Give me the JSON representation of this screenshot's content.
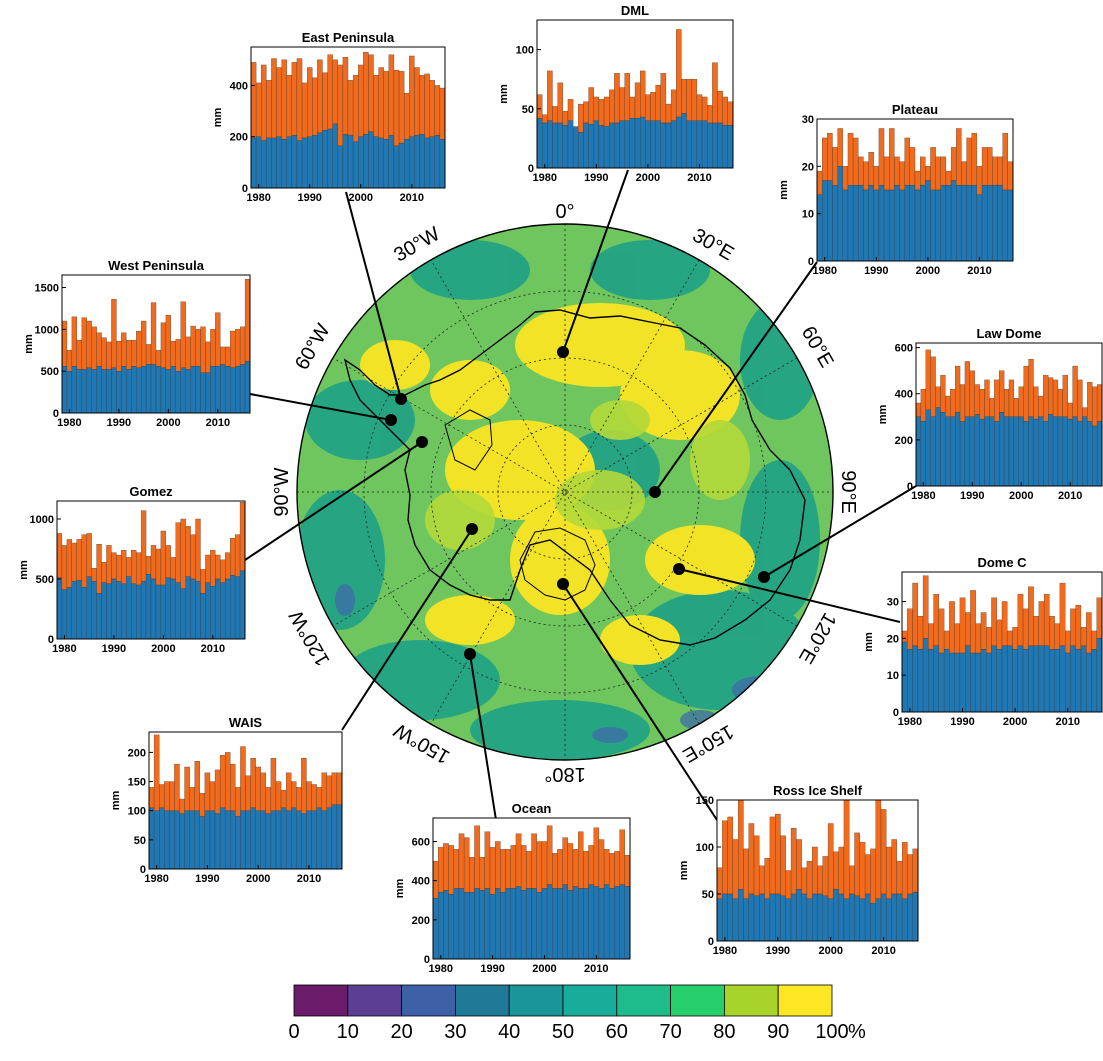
{
  "map": {
    "lon_labels": [
      "0°",
      "30°E",
      "60°E",
      "90°E",
      "120°E",
      "150°E",
      "180°",
      "150°W",
      "120°W",
      "90°W",
      "60°W",
      "30°W"
    ],
    "colors": {
      "low": "#46327e",
      "mid": "#1fa187",
      "high": "#a0da39",
      "top": "#fde725",
      "land_line": "#000000"
    }
  },
  "colorbar": {
    "ticks": [
      "0",
      "10",
      "20",
      "30",
      "40",
      "50",
      "60",
      "70",
      "80",
      "90",
      "100"
    ],
    "unit": "%",
    "colors": [
      "#6a1b6a",
      "#5b3f93",
      "#3d60a6",
      "#1f7a98",
      "#1a9598",
      "#17ad9a",
      "#1fbc8b",
      "#27cf6c",
      "#a8d32a",
      "#fde725"
    ]
  },
  "series_colors": {
    "lower": "#1f77b4",
    "upper": "#f26a1b"
  },
  "chart_data": [
    {
      "type": "bar",
      "title": "East Peninsula",
      "ylabel": "mm",
      "ylim": [
        0,
        550
      ],
      "yticks": [
        0,
        200,
        400
      ],
      "xticks": [
        "1980",
        "1990",
        "2000",
        "2010"
      ],
      "years": [
        1979,
        2016
      ],
      "series": [
        {
          "values": [
            195,
            200,
            185,
            195,
            195,
            200,
            190,
            200,
            205,
            185,
            195,
            200,
            205,
            215,
            225,
            230,
            250,
            165,
            210,
            205,
            180,
            200,
            210,
            220,
            200,
            195,
            190,
            205,
            165,
            175,
            190,
            200,
            205,
            210,
            195,
            200,
            205,
            190
          ]
        },
        {
          "values": [
            490,
            410,
            480,
            420,
            505,
            470,
            500,
            440,
            490,
            505,
            410,
            470,
            430,
            500,
            450,
            520,
            500,
            480,
            510,
            420,
            440,
            480,
            530,
            520,
            440,
            470,
            455,
            520,
            460,
            455,
            370,
            515,
            470,
            440,
            445,
            420,
            400,
            390
          ]
        }
      ]
    },
    {
      "type": "bar",
      "title": "DML",
      "ylabel": "mm",
      "ylim": [
        0,
        125
      ],
      "yticks": [
        0,
        50,
        100
      ],
      "xticks": [
        "1980",
        "1990",
        "2000",
        "2010"
      ],
      "years": [
        1979,
        2016
      ],
      "series": [
        {
          "values": [
            42,
            38,
            40,
            38,
            38,
            36,
            40,
            35,
            30,
            38,
            37,
            40,
            36,
            35,
            38,
            38,
            40,
            40,
            42,
            42,
            43,
            40,
            40,
            40,
            38,
            38,
            40,
            43,
            46,
            40,
            40,
            40,
            40,
            38,
            38,
            38,
            36,
            36
          ]
        },
        {
          "values": [
            62,
            45,
            82,
            52,
            72,
            48,
            58,
            30,
            54,
            56,
            68,
            60,
            58,
            60,
            66,
            80,
            68,
            80,
            60,
            72,
            82,
            62,
            64,
            70,
            80,
            54,
            66,
            117,
            75,
            75,
            75,
            62,
            60,
            53,
            89,
            65,
            60,
            56
          ]
        }
      ]
    },
    {
      "type": "bar",
      "title": "Plateau",
      "ylabel": "mm",
      "ylim": [
        0,
        30
      ],
      "yticks": [
        0,
        10,
        20,
        30
      ],
      "xticks": [
        "1980",
        "1990",
        "2000",
        "2010"
      ],
      "years": [
        1979,
        2016
      ],
      "series": [
        {
          "values": [
            14,
            17,
            17,
            16,
            20,
            15,
            16,
            16,
            16,
            15,
            16,
            15,
            16,
            15,
            15,
            16,
            15,
            16,
            16,
            15,
            16,
            17,
            15,
            15,
            16,
            16,
            17,
            16,
            16,
            16,
            16,
            14,
            16,
            16,
            16,
            16,
            15,
            15
          ]
        },
        {
          "values": [
            19,
            26,
            27,
            24,
            28,
            20,
            27,
            26,
            22,
            21,
            23,
            20,
            28,
            22,
            28,
            22,
            21,
            26,
            24,
            19,
            22,
            20,
            24,
            22,
            22,
            19,
            24,
            28,
            21,
            26,
            27,
            20,
            24,
            24,
            22,
            22,
            27,
            21
          ]
        }
      ]
    },
    {
      "type": "bar",
      "title": "West Peninsula",
      "ylabel": "mm",
      "ylim": [
        0,
        1650
      ],
      "yticks": [
        0,
        500,
        1000,
        1500
      ],
      "xticks": [
        "1980",
        "1990",
        "2000",
        "2010"
      ],
      "years": [
        1979,
        2016
      ],
      "series": [
        {
          "values": [
            560,
            500,
            560,
            520,
            520,
            540,
            520,
            560,
            520,
            520,
            540,
            500,
            560,
            520,
            560,
            540,
            560,
            580,
            580,
            560,
            540,
            520,
            560,
            500,
            540,
            520,
            560,
            560,
            480,
            480,
            560,
            560,
            580,
            560,
            540,
            560,
            580,
            620
          ]
        },
        {
          "values": [
            1100,
            750,
            1150,
            870,
            1140,
            1100,
            1030,
            960,
            900,
            850,
            1360,
            860,
            960,
            870,
            870,
            980,
            1100,
            820,
            1320,
            750,
            1080,
            1170,
            860,
            880,
            1330,
            910,
            1040,
            1000,
            1030,
            850,
            1000,
            1200,
            790,
            790,
            980,
            1000,
            1030,
            1600
          ]
        }
      ]
    },
    {
      "type": "bar",
      "title": "Law Dome",
      "ylabel": "mm",
      "ylim": [
        0,
        620
      ],
      "yticks": [
        0,
        200,
        400,
        600
      ],
      "xticks": [
        "1980",
        "1990",
        "2000",
        "2010"
      ],
      "years": [
        1979,
        2016
      ],
      "series": [
        {
          "values": [
            300,
            280,
            330,
            300,
            340,
            320,
            300,
            300,
            320,
            280,
            300,
            300,
            310,
            290,
            300,
            300,
            280,
            320,
            300,
            300,
            300,
            300,
            280,
            300,
            290,
            300,
            280,
            310,
            300,
            300,
            300,
            290,
            300,
            280,
            300,
            280,
            260,
            280
          ]
        },
        {
          "values": [
            360,
            420,
            590,
            560,
            430,
            480,
            390,
            420,
            520,
            440,
            540,
            500,
            440,
            420,
            460,
            380,
            460,
            500,
            420,
            460,
            380,
            430,
            520,
            550,
            430,
            390,
            480,
            470,
            460,
            420,
            480,
            360,
            520,
            460,
            340,
            450,
            430,
            440
          ]
        }
      ]
    },
    {
      "type": "bar",
      "title": "Gomez",
      "ylabel": "mm",
      "ylim": [
        0,
        1150
      ],
      "yticks": [
        0,
        500,
        1000
      ],
      "xticks": [
        "1980",
        "1990",
        "2000",
        "2010"
      ],
      "years": [
        1979,
        2016
      ],
      "series": [
        {
          "values": [
            510,
            410,
            430,
            480,
            490,
            430,
            520,
            480,
            380,
            470,
            460,
            500,
            480,
            460,
            520,
            460,
            450,
            480,
            540,
            500,
            450,
            450,
            510,
            500,
            470,
            420,
            520,
            500,
            480,
            380,
            470,
            440,
            500,
            470,
            500,
            530,
            520,
            570
          ]
        },
        {
          "values": [
            880,
            780,
            830,
            800,
            830,
            870,
            880,
            590,
            790,
            640,
            780,
            720,
            700,
            740,
            680,
            740,
            720,
            1070,
            690,
            780,
            750,
            900,
            780,
            680,
            970,
            1000,
            940,
            870,
            1000,
            580,
            700,
            740,
            700,
            660,
            720,
            840,
            870,
            1140
          ]
        }
      ]
    },
    {
      "type": "bar",
      "title": "Dome C",
      "ylabel": "mm",
      "ylim": [
        0,
        38
      ],
      "yticks": [
        0,
        10,
        20,
        30
      ],
      "xticks": [
        "1980",
        "1990",
        "2000",
        "2010"
      ],
      "years": [
        1979,
        2016
      ],
      "series": [
        {
          "values": [
            19,
            17,
            18,
            17,
            20,
            17,
            18,
            16,
            17,
            16,
            16,
            16,
            18,
            16,
            16,
            17,
            16,
            18,
            17,
            18,
            18,
            17,
            18,
            17,
            18,
            18,
            18,
            18,
            17,
            17,
            18,
            16,
            18,
            17,
            18,
            16,
            17,
            20
          ]
        },
        {
          "values": [
            22,
            28,
            35,
            26,
            37,
            24,
            32,
            28,
            22,
            30,
            24,
            31,
            27,
            33,
            24,
            27,
            23,
            31,
            25,
            30,
            22,
            23,
            32,
            28,
            34,
            26,
            30,
            32,
            26,
            24,
            35,
            22,
            28,
            29,
            23,
            27,
            22,
            31
          ]
        }
      ]
    },
    {
      "type": "bar",
      "title": "WAIS",
      "ylabel": "mm",
      "ylim": [
        0,
        235
      ],
      "yticks": [
        0,
        50,
        100,
        150,
        200
      ],
      "xticks": [
        "1980",
        "1990",
        "2000",
        "2010"
      ],
      "years": [
        1979,
        2016
      ],
      "series": [
        {
          "values": [
            105,
            100,
            105,
            100,
            100,
            100,
            95,
            100,
            100,
            100,
            90,
            100,
            100,
            95,
            105,
            100,
            100,
            90,
            100,
            100,
            105,
            100,
            100,
            95,
            100,
            100,
            105,
            100,
            105,
            100,
            95,
            100,
            100,
            105,
            100,
            105,
            110,
            110
          ]
        },
        {
          "values": [
            140,
            230,
            145,
            150,
            150,
            180,
            120,
            175,
            140,
            185,
            130,
            165,
            150,
            170,
            195,
            200,
            180,
            140,
            210,
            160,
            190,
            175,
            165,
            140,
            190,
            150,
            135,
            165,
            150,
            140,
            190,
            150,
            145,
            140,
            165,
            160,
            165,
            165
          ]
        }
      ]
    },
    {
      "type": "bar",
      "title": "Ocean",
      "ylabel": "mm",
      "ylim": [
        0,
        720
      ],
      "yticks": [
        0,
        200,
        400,
        600
      ],
      "xticks": [
        "1980",
        "1990",
        "2000",
        "2010"
      ],
      "years": [
        1979,
        2016
      ],
      "series": [
        {
          "values": [
            310,
            340,
            350,
            330,
            360,
            360,
            340,
            340,
            360,
            350,
            360,
            330,
            360,
            340,
            360,
            360,
            370,
            350,
            360,
            360,
            340,
            360,
            380,
            360,
            360,
            380,
            350,
            370,
            360,
            360,
            380,
            370,
            360,
            380,
            360,
            370,
            380,
            370
          ]
        },
        {
          "values": [
            500,
            570,
            590,
            580,
            560,
            640,
            620,
            520,
            680,
            520,
            650,
            570,
            600,
            560,
            560,
            580,
            640,
            580,
            550,
            640,
            600,
            600,
            680,
            540,
            560,
            620,
            590,
            560,
            650,
            550,
            580,
            670,
            610,
            560,
            540,
            550,
            660,
            530
          ]
        }
      ]
    },
    {
      "type": "bar",
      "title": "Ross Ice Shelf",
      "ylabel": "mm",
      "ylim": [
        0,
        150
      ],
      "yticks": [
        0,
        50,
        100,
        150
      ],
      "xticks": [
        "1980",
        "1990",
        "2000",
        "2010"
      ],
      "years": [
        1979,
        2016
      ],
      "series": [
        {
          "values": [
            45,
            50,
            50,
            45,
            55,
            45,
            50,
            48,
            50,
            45,
            50,
            50,
            48,
            45,
            50,
            55,
            50,
            45,
            50,
            50,
            48,
            45,
            55,
            50,
            45,
            50,
            48,
            45,
            50,
            40,
            45,
            50,
            45,
            50,
            50,
            45,
            50,
            52
          ]
        },
        {
          "values": [
            78,
            128,
            132,
            108,
            160,
            98,
            125,
            112,
            80,
            88,
            132,
            135,
            112,
            75,
            120,
            108,
            78,
            85,
            100,
            80,
            90,
            125,
            95,
            100,
            162,
            80,
            115,
            105,
            92,
            98,
            160,
            140,
            100,
            108,
            85,
            105,
            92,
            98
          ]
        }
      ]
    }
  ]
}
